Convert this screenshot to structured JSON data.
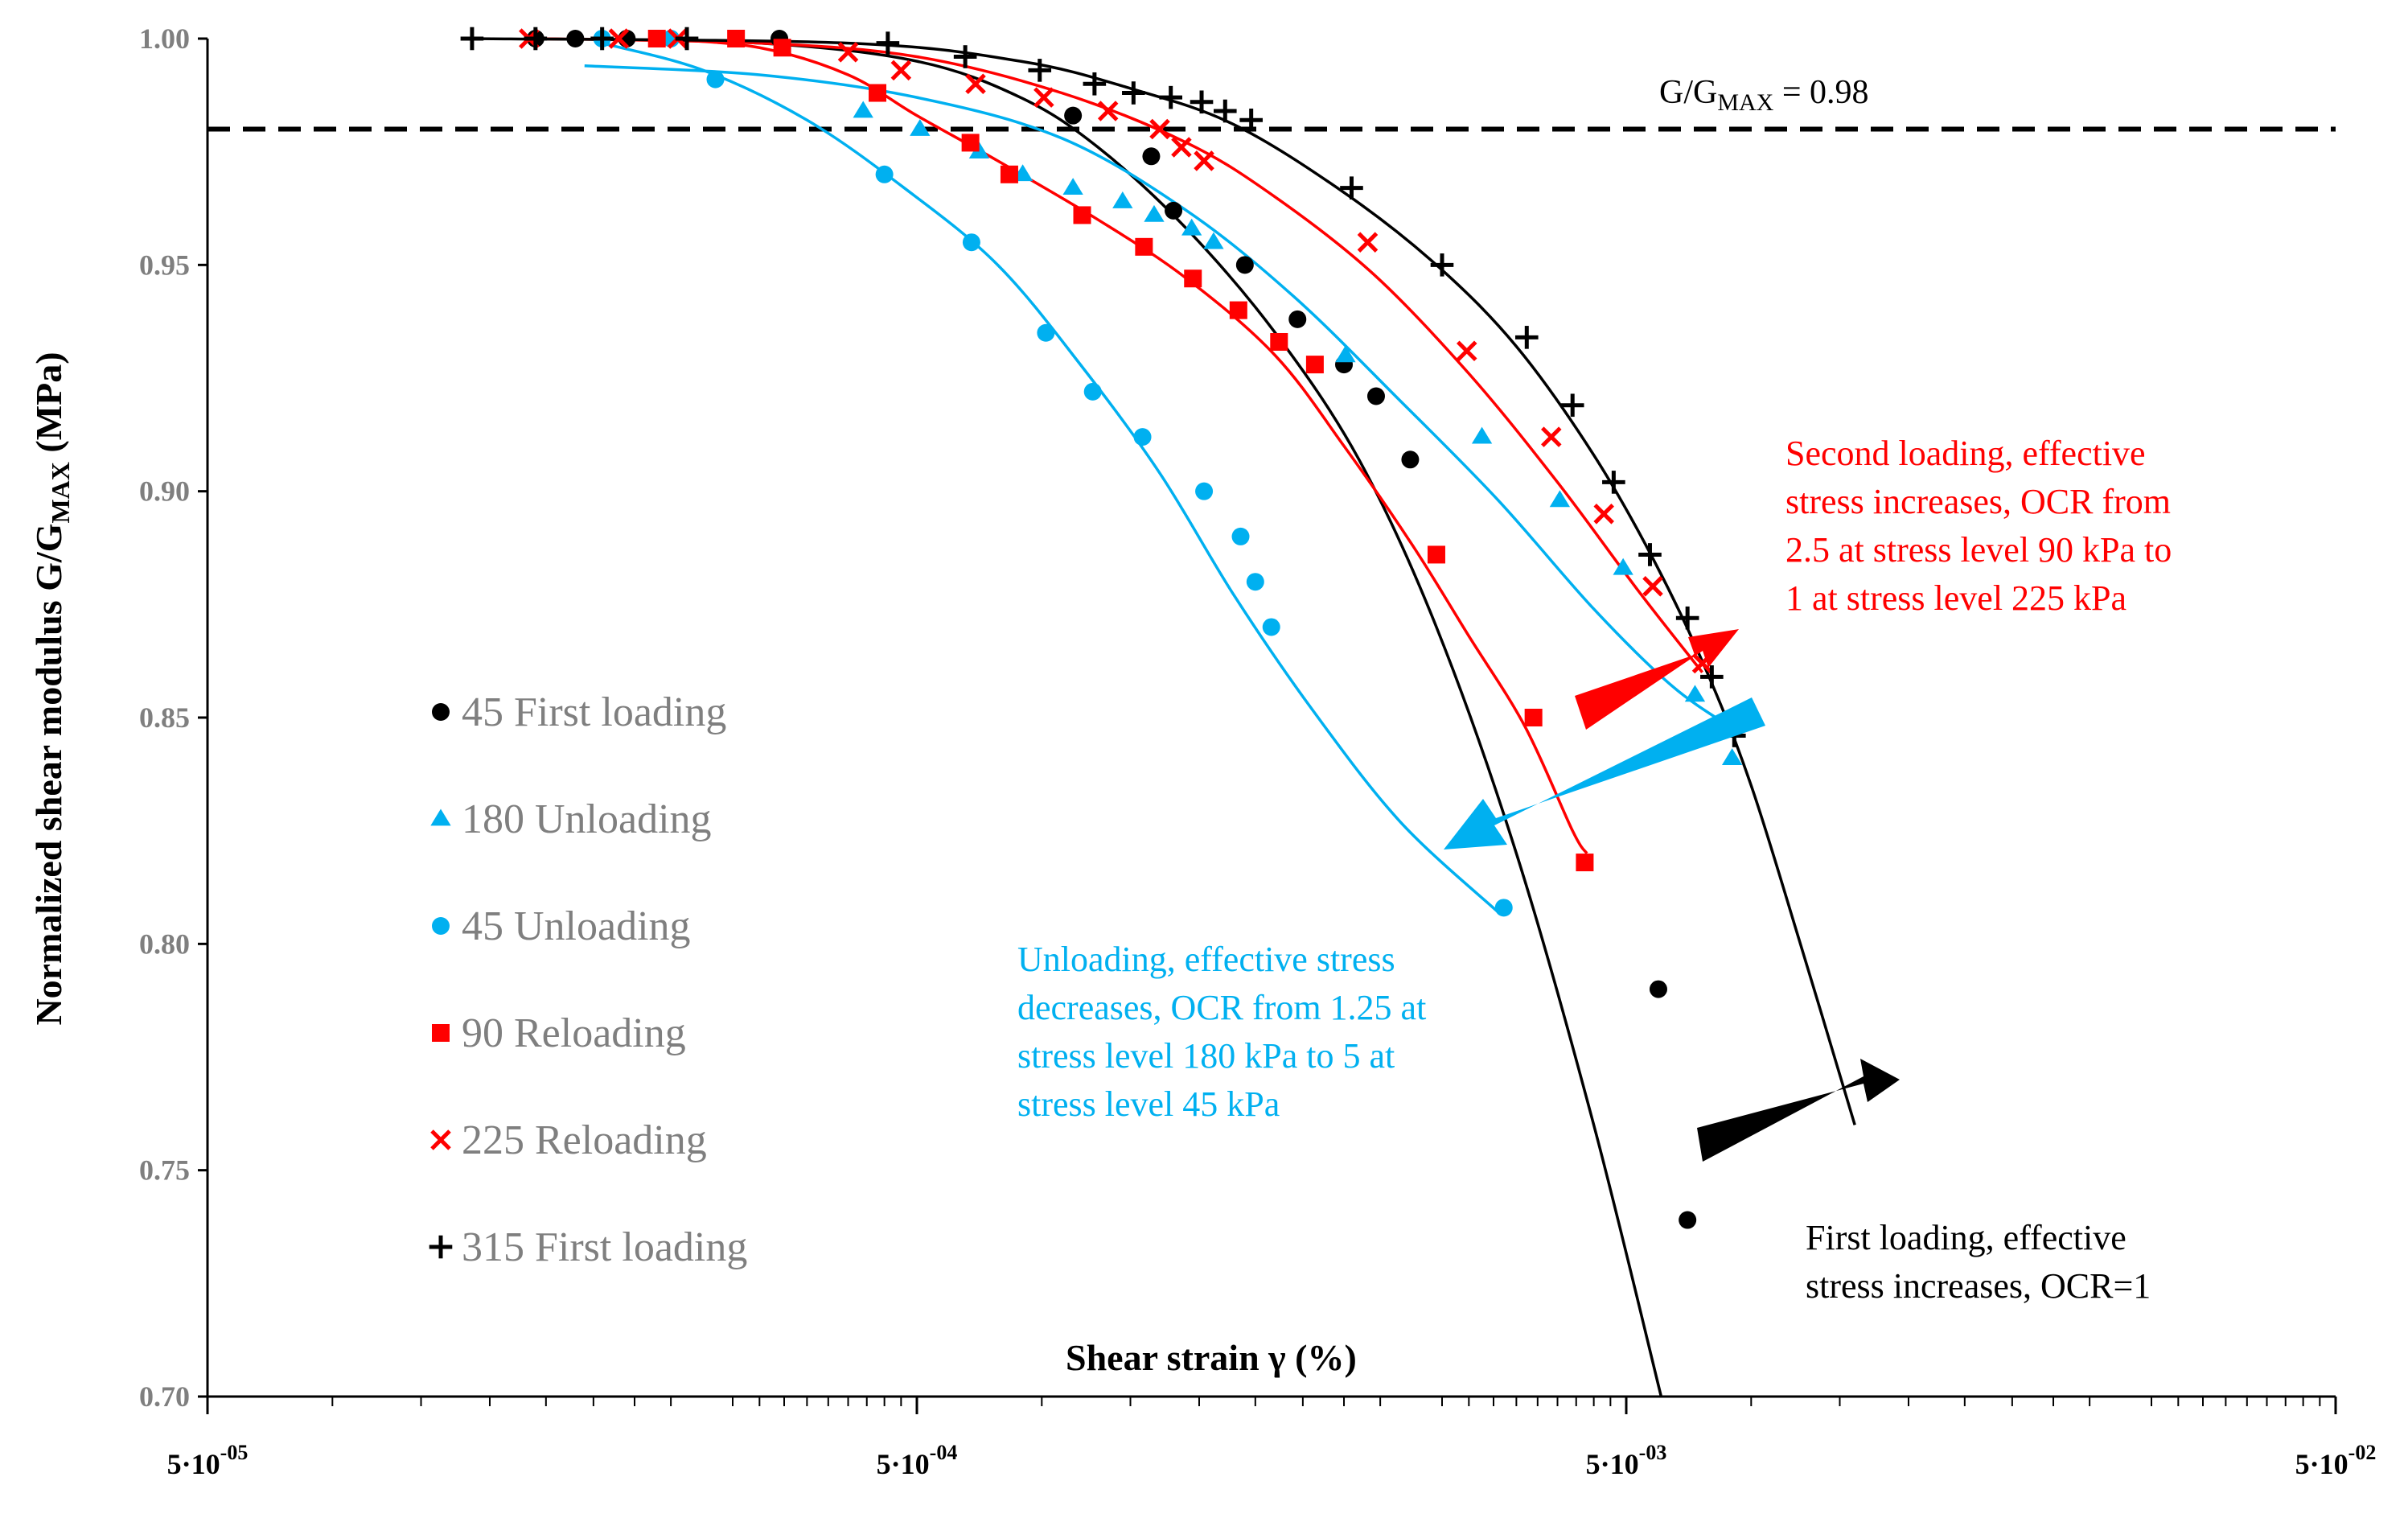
{
  "chart_data": {
    "type": "scatter",
    "ylabel": "Normalized shear modulus G/G",
    "ylabel_sub": "MAX",
    "ylabel_suffix": " (MPa)",
    "xlabel": "Shear strain γ (%)",
    "x_scale": "log",
    "xlim": [
      5e-05,
      0.05
    ],
    "ylim": [
      0.7,
      1.0
    ],
    "grid": false,
    "legend_position": "left-middle",
    "x_ticks": [
      {
        "value": 5e-05,
        "base": "5·10",
        "exp": "-05"
      },
      {
        "value": 0.0005,
        "base": "5·10",
        "exp": "-04"
      },
      {
        "value": 0.005,
        "base": "5·10",
        "exp": "-03"
      },
      {
        "value": 0.05,
        "base": "5·10",
        "exp": "-02"
      }
    ],
    "y_ticks": [
      {
        "value": 1.0,
        "label": "1.00"
      },
      {
        "value": 0.95,
        "label": "0.95"
      },
      {
        "value": 0.9,
        "label": "0.90"
      },
      {
        "value": 0.85,
        "label": "0.85"
      },
      {
        "value": 0.8,
        "label": "0.80"
      },
      {
        "value": 0.75,
        "label": "0.75"
      },
      {
        "value": 0.7,
        "label": "0.70"
      }
    ],
    "reference_line": {
      "y": 0.98,
      "label_main": "G/G",
      "label_sub": "MAX",
      "label_suffix": " = 0.98"
    },
    "series": [
      {
        "name": "45 First loading",
        "marker": "circle",
        "color": "#000000",
        "points": [
          [
            0.000145,
            1.0
          ],
          [
            0.000165,
            1.0
          ],
          [
            0.000195,
            1.0
          ],
          [
            0.00032,
            1.0
          ],
          [
            0.00083,
            0.983
          ],
          [
            0.00107,
            0.974
          ],
          [
            0.00115,
            0.962
          ],
          [
            0.00145,
            0.95
          ],
          [
            0.00172,
            0.938
          ],
          [
            0.002,
            0.928
          ],
          [
            0.00222,
            0.921
          ],
          [
            0.00248,
            0.907
          ],
          [
            0.00555,
            0.79
          ],
          [
            0.0061,
            0.739
          ]
        ],
        "curve": [
          [
            0.000145,
            1.0
          ],
          [
            0.0003,
            0.999
          ],
          [
            0.0005,
            0.995
          ],
          [
            0.0007,
            0.987
          ],
          [
            0.0009,
            0.976
          ],
          [
            0.0012,
            0.958
          ],
          [
            0.0016,
            0.935
          ],
          [
            0.0021,
            0.907
          ],
          [
            0.0027,
            0.87
          ],
          [
            0.0035,
            0.82
          ],
          [
            0.0045,
            0.76
          ],
          [
            0.0056,
            0.7
          ]
        ]
      },
      {
        "name": "180 Unloading",
        "marker": "triangle",
        "color": "#00b0f0",
        "points": [
          [
            0.00042,
            0.984
          ],
          [
            0.000505,
            0.98
          ],
          [
            0.000612,
            0.975
          ],
          [
            0.000705,
            0.97
          ],
          [
            0.00083,
            0.967
          ],
          [
            0.000975,
            0.964
          ],
          [
            0.00108,
            0.961
          ],
          [
            0.00122,
            0.958
          ],
          [
            0.00131,
            0.955
          ],
          [
            0.00201,
            0.93
          ],
          [
            0.00313,
            0.912
          ],
          [
            0.00403,
            0.898
          ],
          [
            0.00495,
            0.883
          ],
          [
            0.00625,
            0.855
          ],
          [
            0.00705,
            0.841
          ]
        ],
        "curve": [
          [
            0.00017,
            0.994
          ],
          [
            0.0003,
            0.992
          ],
          [
            0.0005,
            0.987
          ],
          [
            0.0008,
            0.978
          ],
          [
            0.0012,
            0.962
          ],
          [
            0.0017,
            0.943
          ],
          [
            0.0024,
            0.92
          ],
          [
            0.0033,
            0.898
          ],
          [
            0.0045,
            0.874
          ],
          [
            0.0058,
            0.857
          ],
          [
            0.007,
            0.848
          ]
        ]
      },
      {
        "name": "45 Unloading",
        "marker": "circle",
        "color": "#00b0f0",
        "points": [
          [
            0.00018,
            1.0
          ],
          [
            0.000225,
            1.0
          ],
          [
            0.00026,
            0.991
          ],
          [
            0.00045,
            0.97
          ],
          [
            0.000597,
            0.955
          ],
          [
            0.00076,
            0.935
          ],
          [
            0.000885,
            0.922
          ],
          [
            0.00104,
            0.912
          ],
          [
            0.00127,
            0.9
          ],
          [
            0.00143,
            0.89
          ],
          [
            0.0015,
            0.88
          ],
          [
            0.00158,
            0.87
          ],
          [
            0.00336,
            0.808
          ]
        ],
        "curve": [
          [
            0.00018,
            0.999
          ],
          [
            0.00025,
            0.993
          ],
          [
            0.00035,
            0.982
          ],
          [
            0.00048,
            0.967
          ],
          [
            0.00065,
            0.95
          ],
          [
            0.00085,
            0.928
          ],
          [
            0.0011,
            0.904
          ],
          [
            0.0014,
            0.877
          ],
          [
            0.0018,
            0.852
          ],
          [
            0.0024,
            0.827
          ],
          [
            0.0033,
            0.807
          ]
        ]
      },
      {
        "name": "90 Reloading",
        "marker": "square",
        "color": "#ff0000",
        "points": [
          [
            0.000215,
            1.0
          ],
          [
            0.000278,
            1.0
          ],
          [
            0.000323,
            0.998
          ],
          [
            0.00044,
            0.988
          ],
          [
            0.000595,
            0.977
          ],
          [
            0.000675,
            0.97
          ],
          [
            0.000855,
            0.961
          ],
          [
            0.001045,
            0.954
          ],
          [
            0.001225,
            0.947
          ],
          [
            0.00142,
            0.94
          ],
          [
            0.00162,
            0.933
          ],
          [
            0.00182,
            0.928
          ],
          [
            0.0027,
            0.886
          ],
          [
            0.0037,
            0.85
          ],
          [
            0.00437,
            0.818
          ]
        ],
        "curve": [
          [
            0.000215,
            1.0
          ],
          [
            0.0003,
            0.998
          ],
          [
            0.0004,
            0.992
          ],
          [
            0.0005,
            0.983
          ],
          [
            0.00065,
            0.973
          ],
          [
            0.0009,
            0.96
          ],
          [
            0.0012,
            0.947
          ],
          [
            0.0016,
            0.93
          ],
          [
            0.002,
            0.91
          ],
          [
            0.0025,
            0.888
          ],
          [
            0.003,
            0.868
          ],
          [
            0.0036,
            0.848
          ],
          [
            0.0042,
            0.825
          ],
          [
            0.0044,
            0.82
          ]
        ]
      },
      {
        "name": "225 Reloading",
        "marker": "x",
        "color": "#ff0000",
        "points": [
          [
            0.000142,
            1.0
          ],
          [
            0.00019,
            1.0
          ],
          [
            0.00023,
            1.0
          ],
          [
            0.0004,
            0.997
          ],
          [
            0.000475,
            0.993
          ],
          [
            0.000605,
            0.99
          ],
          [
            0.000755,
            0.987
          ],
          [
            0.00093,
            0.984
          ],
          [
            0.0011,
            0.98
          ],
          [
            0.00118,
            0.976
          ],
          [
            0.00127,
            0.973
          ],
          [
            0.00216,
            0.955
          ],
          [
            0.00298,
            0.931
          ],
          [
            0.00392,
            0.912
          ],
          [
            0.00465,
            0.895
          ],
          [
            0.00545,
            0.879
          ],
          [
            0.0064,
            0.862
          ]
        ],
        "curve": [
          [
            0.000142,
            1.0
          ],
          [
            0.0003,
            0.999
          ],
          [
            0.0005,
            0.996
          ],
          [
            0.0008,
            0.988
          ],
          [
            0.0012,
            0.977
          ],
          [
            0.0016,
            0.965
          ],
          [
            0.0022,
            0.948
          ],
          [
            0.003,
            0.926
          ],
          [
            0.004,
            0.902
          ],
          [
            0.0052,
            0.878
          ],
          [
            0.0064,
            0.86
          ]
        ]
      },
      {
        "name": "315 First loading",
        "marker": "plus",
        "color": "#000000",
        "points": [
          [
            0.000118,
            1.0
          ],
          [
            0.000145,
            1.0
          ],
          [
            0.00018,
            1.0
          ],
          [
            0.000237,
            1.0
          ],
          [
            0.000455,
            0.999
          ],
          [
            0.000585,
            0.996
          ],
          [
            0.000745,
            0.993
          ],
          [
            0.00089,
            0.99
          ],
          [
            0.00101,
            0.988
          ],
          [
            0.00114,
            0.987
          ],
          [
            0.00126,
            0.986
          ],
          [
            0.00136,
            0.984
          ],
          [
            0.00148,
            0.982
          ],
          [
            0.00205,
            0.967
          ],
          [
            0.00275,
            0.95
          ],
          [
            0.00362,
            0.934
          ],
          [
            0.0042,
            0.919
          ],
          [
            0.0048,
            0.902
          ],
          [
            0.0054,
            0.886
          ],
          [
            0.0061,
            0.872
          ],
          [
            0.0066,
            0.859
          ],
          [
            0.0071,
            0.846
          ]
        ],
        "curve": [
          [
            0.000118,
            1.0
          ],
          [
            0.0004,
            0.999
          ],
          [
            0.0007,
            0.995
          ],
          [
            0.001,
            0.989
          ],
          [
            0.0014,
            0.981
          ],
          [
            0.002,
            0.966
          ],
          [
            0.0027,
            0.95
          ],
          [
            0.0035,
            0.932
          ],
          [
            0.0045,
            0.908
          ],
          [
            0.0055,
            0.884
          ],
          [
            0.0065,
            0.86
          ],
          [
            0.0075,
            0.835
          ],
          [
            0.0088,
            0.8
          ],
          [
            0.0105,
            0.76
          ]
        ]
      }
    ],
    "annotations": [
      {
        "color": "red",
        "lines": [
          "Second loading, effective",
          "stress increases, OCR from",
          "2.5 at stress level 90 kPa to",
          "1 at stress level 225 kPa"
        ]
      },
      {
        "color": "blue",
        "lines": [
          "Unloading, effective stress",
          "decreases, OCR from 1.25 at",
          "stress level 180 kPa to 5 at",
          "stress level 45 kPa"
        ]
      },
      {
        "color": "black",
        "lines": [
          "First loading, effective",
          "stress increases, OCR=1"
        ]
      }
    ]
  }
}
